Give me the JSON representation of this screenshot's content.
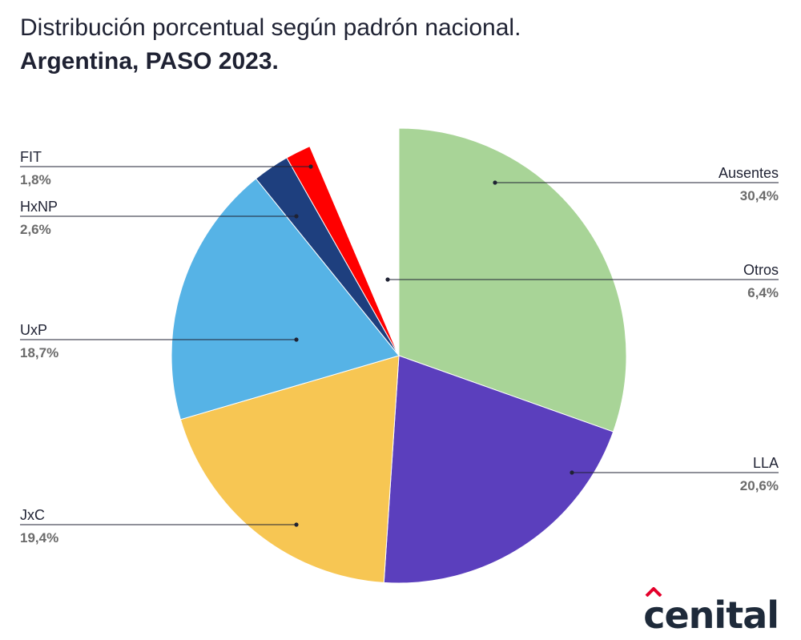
{
  "title": "Distribución porcentual según padrón nacional.",
  "subtitle": "Argentina, PASO 2023.",
  "brand": {
    "name": "cenital",
    "accent": "#e4002b"
  },
  "chart_data": {
    "type": "pie",
    "start": "top, clockwise",
    "slices": [
      {
        "label": "Ausentes",
        "value_label": "30,4%",
        "value": 30.4,
        "color": "#a8d497"
      },
      {
        "label": "LLA",
        "value_label": "20,6%",
        "value": 20.6,
        "color": "#5b3fbd"
      },
      {
        "label": "JxC",
        "value_label": "19,4%",
        "value": 19.4,
        "color": "#f7c653"
      },
      {
        "label": "UxP",
        "value_label": "18,7%",
        "value": 18.7,
        "color": "#56b3e6"
      },
      {
        "label": "HxNP",
        "value_label": "2,6%",
        "value": 2.6,
        "color": "#1e3f7e"
      },
      {
        "label": "FIT",
        "value_label": "1,8%",
        "value": 1.8,
        "color": "#ff0000"
      },
      {
        "label": "Otros",
        "value_label": "6,4%",
        "value": 6.4,
        "color": "#ffffff"
      }
    ]
  }
}
